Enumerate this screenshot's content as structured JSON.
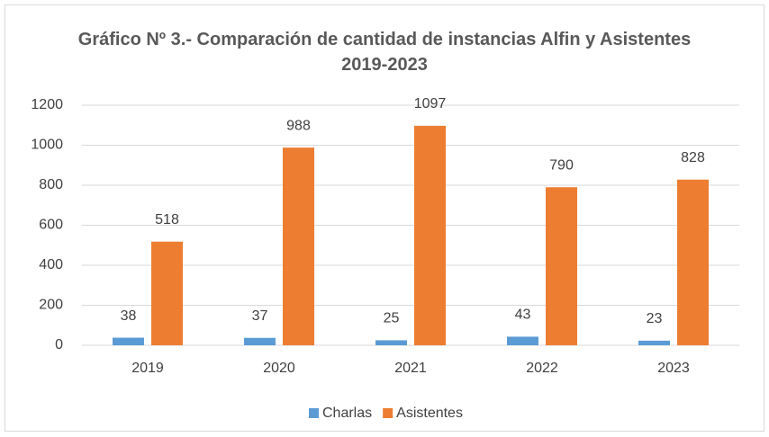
{
  "chart_data": {
    "type": "bar",
    "title": "Gráfico Nº 3.- Comparación de cantidad de instancias Alfin y Asistentes 2019-2023",
    "categories": [
      "2019",
      "2020",
      "2021",
      "2022",
      "2023"
    ],
    "series": [
      {
        "name": "Charlas",
        "color": "#5b9bd5",
        "values": [
          38,
          37,
          25,
          43,
          23
        ]
      },
      {
        "name": "Asistentes",
        "color": "#ed7d31",
        "values": [
          518,
          988,
          1097,
          790,
          828
        ]
      }
    ],
    "ylim": [
      0,
      1200
    ],
    "yticks": [
      0,
      200,
      400,
      600,
      800,
      1000,
      1200
    ],
    "grid": true,
    "legend": "bottom"
  }
}
